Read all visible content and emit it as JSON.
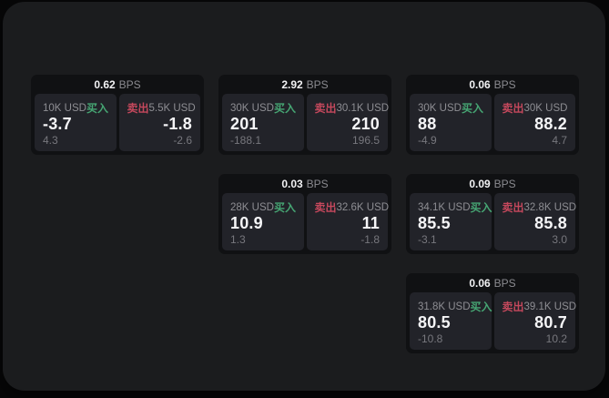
{
  "theme": {
    "buy_color": "#46a573",
    "sell_color": "#c4485c",
    "panel_bg": "#1b1c1e",
    "card_bg": "#101113",
    "tile_bg": "#222329"
  },
  "labels": {
    "bps": "BPS",
    "buy": "买入",
    "sell": "卖出"
  },
  "cards": [
    {
      "col": 1,
      "row": 1,
      "bps": "0.62",
      "buy": {
        "size": "10K USD",
        "price": "-3.7",
        "delta": "4.3"
      },
      "sell": {
        "size": "5.5K USD",
        "price": "-1.8",
        "delta": "-2.6"
      }
    },
    {
      "col": 2,
      "row": 1,
      "bps": "2.92",
      "buy": {
        "size": "30K USD",
        "price": "201",
        "delta": "-188.1"
      },
      "sell": {
        "size": "30.1K USD",
        "price": "210",
        "delta": "196.5"
      }
    },
    {
      "col": 3,
      "row": 1,
      "bps": "0.06",
      "buy": {
        "size": "30K USD",
        "price": "88",
        "delta": "-4.9"
      },
      "sell": {
        "size": "30K USD",
        "price": "88.2",
        "delta": "4.7"
      }
    },
    {
      "col": 2,
      "row": 2,
      "bps": "0.03",
      "buy": {
        "size": "28K USD",
        "price": "10.9",
        "delta": "1.3"
      },
      "sell": {
        "size": "32.6K USD",
        "price": "11",
        "delta": "-1.8"
      }
    },
    {
      "col": 3,
      "row": 2,
      "bps": "0.09",
      "buy": {
        "size": "34.1K USD",
        "price": "85.5",
        "delta": "-3.1"
      },
      "sell": {
        "size": "32.8K USD",
        "price": "85.8",
        "delta": "3.0"
      }
    },
    {
      "col": 3,
      "row": 3,
      "bps": "0.06",
      "buy": {
        "size": "31.8K USD",
        "price": "80.5",
        "delta": "-10.8"
      },
      "sell": {
        "size": "39.1K USD",
        "price": "80.7",
        "delta": "10.2"
      }
    }
  ]
}
